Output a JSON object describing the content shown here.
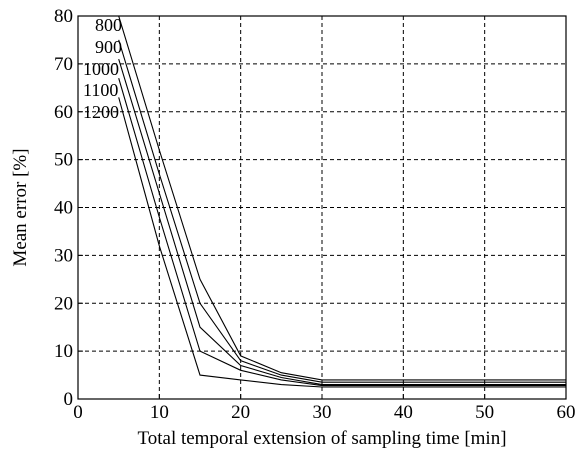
{
  "chart_data": {
    "type": "line",
    "xlabel": "Total temporal extension of sampling time [min]",
    "ylabel": "Mean error [%]",
    "xlim": [
      0,
      60
    ],
    "ylim": [
      0,
      80
    ],
    "xticks": [
      0,
      10,
      20,
      30,
      40,
      50,
      60
    ],
    "yticks": [
      0,
      10,
      20,
      30,
      40,
      50,
      60,
      70,
      80
    ],
    "grid": true,
    "series": [
      {
        "name": "800",
        "x": [
          5,
          10,
          15,
          20,
          25,
          30,
          60
        ],
        "y": [
          80,
          52,
          25,
          9,
          5.5,
          4,
          4
        ]
      },
      {
        "name": "900",
        "x": [
          5,
          10,
          15,
          20,
          25,
          30,
          60
        ],
        "y": [
          75,
          47,
          20,
          8,
          5,
          3.5,
          3.5
        ]
      },
      {
        "name": "1000",
        "x": [
          5,
          10,
          15,
          20,
          25,
          30,
          60
        ],
        "y": [
          71,
          43,
          15,
          7,
          4.5,
          3,
          3
        ]
      },
      {
        "name": "1100",
        "x": [
          5,
          10,
          15,
          20,
          25,
          30,
          60
        ],
        "y": [
          67,
          38,
          10,
          6,
          4,
          2.8,
          2.8
        ]
      },
      {
        "name": "1200",
        "x": [
          5,
          10,
          15,
          20,
          25,
          30,
          60
        ],
        "y": [
          63,
          32,
          5,
          4,
          3,
          2.5,
          2.5
        ]
      }
    ]
  }
}
